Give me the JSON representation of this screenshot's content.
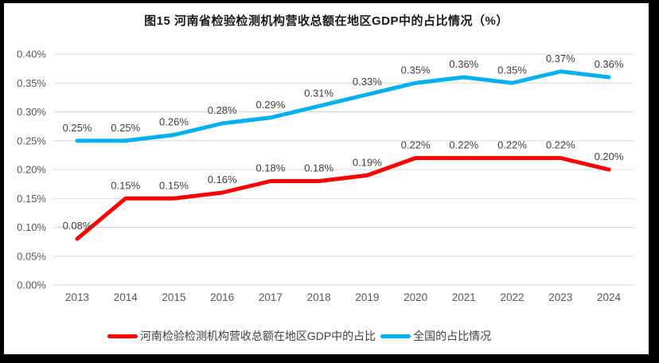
{
  "title": "图15  河南省检验检测机构营收总额在地区GDP中的占比情况（%）",
  "chart_data": {
    "type": "line",
    "categories": [
      "2013",
      "2014",
      "2015",
      "2016",
      "2017",
      "2018",
      "2019",
      "2020",
      "2021",
      "2022",
      "2023",
      "2024"
    ],
    "series": [
      {
        "name": "河南检验检测机构营收总额在地区GDP中的占比",
        "color": "#FE0000",
        "values": [
          0.08,
          0.15,
          0.15,
          0.16,
          0.18,
          0.18,
          0.19,
          0.22,
          0.22,
          0.22,
          0.22,
          0.2
        ],
        "labels": [
          "0.08%",
          "0.15%",
          "0.15%",
          "0.16%",
          "0.18%",
          "0.18%",
          "0.19%",
          "0.22%",
          "0.22%",
          "0.22%",
          "0.22%",
          "0.20%"
        ]
      },
      {
        "name": "全国的占比情况",
        "color": "#00B0F0",
        "values": [
          0.25,
          0.25,
          0.26,
          0.28,
          0.29,
          0.31,
          0.33,
          0.35,
          0.36,
          0.35,
          0.37,
          0.36
        ],
        "labels": [
          "0.25%",
          "0.25%",
          "0.26%",
          "0.28%",
          "0.29%",
          "0.31%",
          "0.33%",
          "0.35%",
          "0.36%",
          "0.35%",
          "0.37%",
          "0.36%"
        ]
      }
    ],
    "ylim": [
      0,
      0.4
    ],
    "ytick_step": 0.05,
    "yticks": [
      "0.00%",
      "0.05%",
      "0.10%",
      "0.15%",
      "0.20%",
      "0.25%",
      "0.30%",
      "0.35%",
      "0.40%"
    ],
    "xlabel": "",
    "ylabel": "",
    "grid": true,
    "legend_position": "bottom",
    "grid_color": "#D9D9D9",
    "tick_color": "#595959",
    "label_color": "#404040",
    "background_color": "#FFFFFF",
    "frame_color": "#000000"
  }
}
